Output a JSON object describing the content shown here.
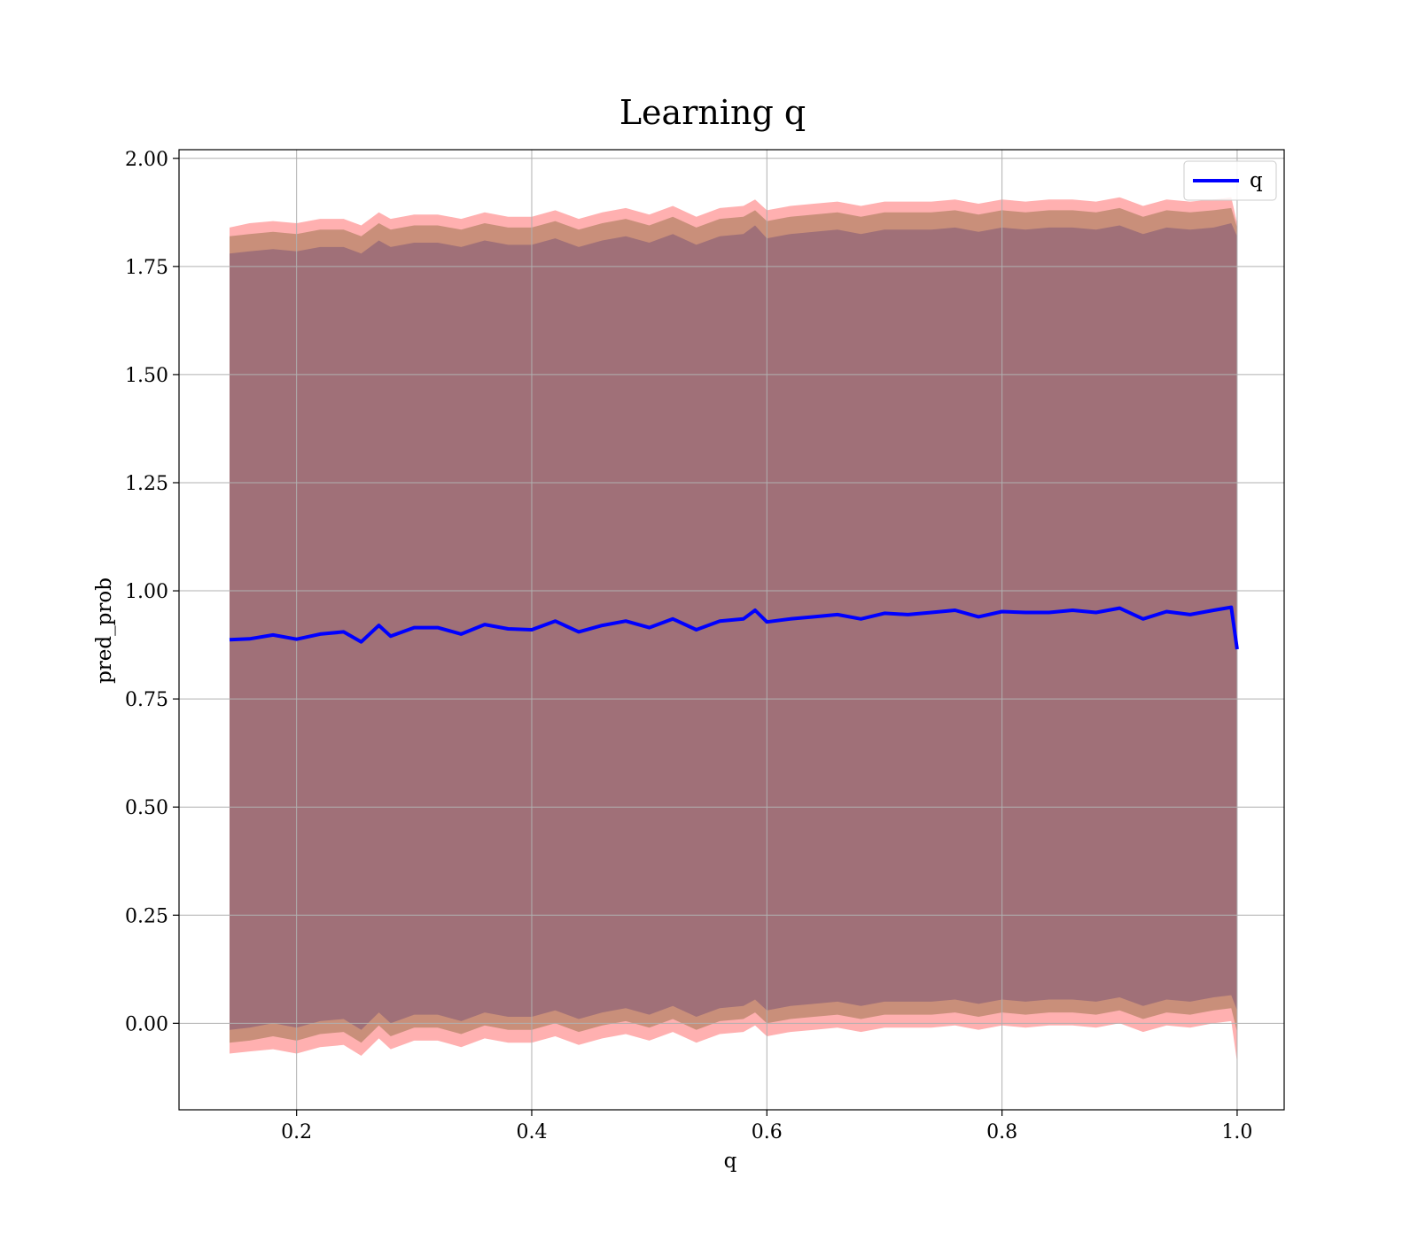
{
  "chart_data": {
    "type": "line",
    "title": "Learning q",
    "xlabel": "q",
    "ylabel": "pred_prob",
    "xlim": [
      0.1,
      1.04
    ],
    "ylim": [
      -0.2,
      2.02
    ],
    "xticks": [
      0.2,
      0.4,
      0.6,
      0.8,
      1.0
    ],
    "xtick_labels": [
      "0.2",
      "0.4",
      "0.6",
      "0.8",
      "1.0"
    ],
    "yticks": [
      0.0,
      0.25,
      0.5,
      0.75,
      1.0,
      1.25,
      1.5,
      1.75,
      2.0
    ],
    "ytick_labels": [
      "0.00",
      "0.25",
      "0.50",
      "0.75",
      "1.00",
      "1.25",
      "1.50",
      "1.75",
      "2.00"
    ],
    "grid": true,
    "legend": {
      "position": "top-right",
      "entries": [
        "q"
      ]
    },
    "colors": {
      "line": "#0000ff",
      "band_outer": "#ffb0b0",
      "band_middle": "#c98f7a",
      "band_inner": "#a07078",
      "grid": "#b0b0b0"
    },
    "series": [
      {
        "name": "q",
        "x": [
          0.143,
          0.16,
          0.18,
          0.2,
          0.22,
          0.24,
          0.255,
          0.27,
          0.28,
          0.3,
          0.32,
          0.34,
          0.36,
          0.38,
          0.4,
          0.42,
          0.44,
          0.46,
          0.48,
          0.5,
          0.52,
          0.54,
          0.56,
          0.58,
          0.59,
          0.6,
          0.62,
          0.64,
          0.66,
          0.68,
          0.7,
          0.72,
          0.74,
          0.76,
          0.78,
          0.8,
          0.82,
          0.84,
          0.86,
          0.88,
          0.9,
          0.92,
          0.94,
          0.96,
          0.98,
          0.995,
          1.0
        ],
        "y": [
          0.887,
          0.889,
          0.898,
          0.888,
          0.9,
          0.905,
          0.882,
          0.92,
          0.895,
          0.915,
          0.915,
          0.9,
          0.922,
          0.912,
          0.91,
          0.93,
          0.905,
          0.92,
          0.93,
          0.915,
          0.935,
          0.91,
          0.93,
          0.935,
          0.955,
          0.928,
          0.935,
          0.94,
          0.945,
          0.935,
          0.948,
          0.945,
          0.95,
          0.955,
          0.94,
          0.952,
          0.95,
          0.95,
          0.955,
          0.95,
          0.96,
          0.935,
          0.952,
          0.945,
          0.955,
          0.962,
          0.865
        ],
        "band_outer_upper": [
          1.84,
          1.85,
          1.855,
          1.85,
          1.86,
          1.86,
          1.845,
          1.875,
          1.86,
          1.87,
          1.87,
          1.86,
          1.875,
          1.865,
          1.865,
          1.88,
          1.86,
          1.875,
          1.885,
          1.87,
          1.89,
          1.865,
          1.885,
          1.89,
          1.905,
          1.88,
          1.89,
          1.895,
          1.9,
          1.89,
          1.9,
          1.9,
          1.9,
          1.905,
          1.895,
          1.905,
          1.9,
          1.905,
          1.905,
          1.9,
          1.91,
          1.89,
          1.905,
          1.9,
          1.905,
          1.91,
          1.85
        ],
        "band_middle_upper": [
          1.82,
          1.825,
          1.83,
          1.825,
          1.835,
          1.835,
          1.82,
          1.85,
          1.835,
          1.845,
          1.845,
          1.835,
          1.85,
          1.84,
          1.84,
          1.855,
          1.835,
          1.85,
          1.86,
          1.845,
          1.865,
          1.84,
          1.86,
          1.865,
          1.88,
          1.855,
          1.865,
          1.87,
          1.875,
          1.865,
          1.875,
          1.875,
          1.875,
          1.88,
          1.87,
          1.88,
          1.875,
          1.88,
          1.88,
          1.875,
          1.885,
          1.865,
          1.88,
          1.875,
          1.88,
          1.885,
          1.84
        ],
        "band_inner_upper": [
          1.78,
          1.785,
          1.79,
          1.785,
          1.795,
          1.795,
          1.78,
          1.81,
          1.795,
          1.805,
          1.805,
          1.795,
          1.81,
          1.8,
          1.8,
          1.815,
          1.795,
          1.81,
          1.82,
          1.805,
          1.825,
          1.8,
          1.82,
          1.825,
          1.845,
          1.815,
          1.825,
          1.83,
          1.835,
          1.825,
          1.835,
          1.835,
          1.835,
          1.84,
          1.83,
          1.84,
          1.835,
          1.84,
          1.84,
          1.835,
          1.845,
          1.825,
          1.84,
          1.835,
          1.84,
          1.85,
          1.82
        ],
        "band_inner_lower": [
          -0.015,
          -0.01,
          0.0,
          -0.01,
          0.005,
          0.01,
          -0.015,
          0.025,
          0.0,
          0.02,
          0.02,
          0.005,
          0.025,
          0.015,
          0.015,
          0.03,
          0.01,
          0.025,
          0.035,
          0.02,
          0.04,
          0.015,
          0.035,
          0.04,
          0.055,
          0.03,
          0.04,
          0.045,
          0.05,
          0.04,
          0.05,
          0.05,
          0.05,
          0.055,
          0.045,
          0.055,
          0.05,
          0.055,
          0.055,
          0.05,
          0.06,
          0.04,
          0.055,
          0.05,
          0.06,
          0.065,
          0.03
        ],
        "band_middle_lower": [
          -0.045,
          -0.04,
          -0.03,
          -0.04,
          -0.025,
          -0.02,
          -0.045,
          -0.005,
          -0.03,
          -0.01,
          -0.01,
          -0.025,
          -0.005,
          -0.015,
          -0.015,
          0.0,
          -0.02,
          -0.005,
          0.005,
          -0.01,
          0.01,
          -0.015,
          0.005,
          0.01,
          0.025,
          0.0,
          0.01,
          0.015,
          0.02,
          0.01,
          0.02,
          0.02,
          0.02,
          0.025,
          0.015,
          0.025,
          0.02,
          0.025,
          0.025,
          0.02,
          0.03,
          0.01,
          0.025,
          0.02,
          0.03,
          0.035,
          -0.02
        ],
        "band_outer_lower": [
          -0.07,
          -0.065,
          -0.06,
          -0.07,
          -0.055,
          -0.05,
          -0.075,
          -0.035,
          -0.06,
          -0.04,
          -0.04,
          -0.055,
          -0.035,
          -0.045,
          -0.045,
          -0.03,
          -0.05,
          -0.035,
          -0.025,
          -0.04,
          -0.02,
          -0.045,
          -0.025,
          -0.02,
          -0.005,
          -0.03,
          -0.02,
          -0.015,
          -0.01,
          -0.02,
          -0.01,
          -0.01,
          -0.01,
          -0.005,
          -0.015,
          -0.005,
          -0.01,
          -0.005,
          -0.005,
          -0.01,
          0.0,
          -0.02,
          -0.005,
          -0.01,
          0.0,
          0.005,
          -0.09
        ]
      }
    ]
  }
}
